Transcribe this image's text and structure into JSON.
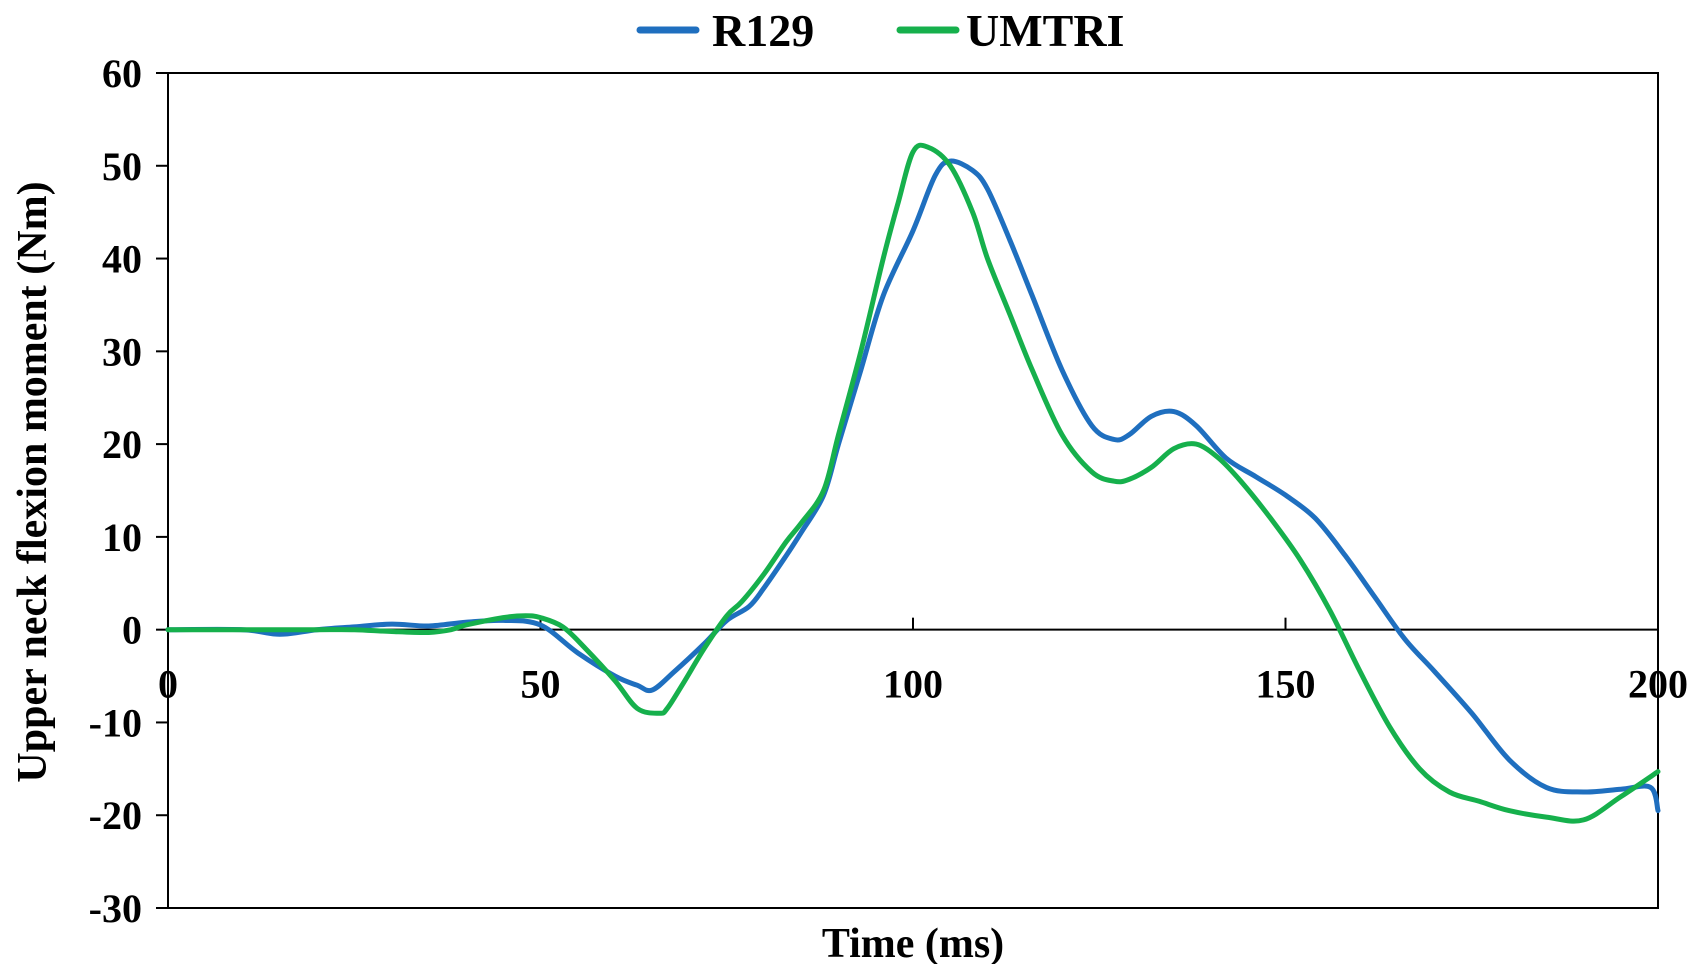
{
  "chart_data": {
    "type": "line",
    "xlabel": "Time (ms)",
    "ylabel": "Upper neck flexion moment (Nm)",
    "xlim": [
      0,
      200
    ],
    "ylim": [
      -30,
      60
    ],
    "x_ticks": [
      0,
      50,
      100,
      150,
      200
    ],
    "y_ticks": [
      60,
      50,
      40,
      30,
      20,
      10,
      0,
      -10,
      -20,
      -30
    ],
    "grid": false,
    "legend_position": "top-center",
    "series": [
      {
        "name": "R129",
        "color": "#1f6fbf",
        "x": [
          0,
          10,
          15,
          20,
          25,
          30,
          35,
          40,
          45,
          50,
          55,
          60,
          63,
          65,
          68,
          72,
          75,
          78,
          80,
          83,
          85,
          88,
          90,
          93,
          96,
          100,
          103,
          105,
          108,
          110,
          113,
          116,
          120,
          124,
          127,
          129,
          132,
          135,
          138,
          142,
          146,
          150,
          154,
          158,
          162,
          166,
          170,
          175,
          180,
          185,
          190,
          195,
          199,
          200
        ],
        "y": [
          0,
          0,
          -0.5,
          0,
          0.3,
          0.6,
          0.4,
          0.8,
          1.0,
          0.5,
          -2.5,
          -5,
          -6,
          -6.5,
          -4.5,
          -1.5,
          1.0,
          2.5,
          4.5,
          8.0,
          10.5,
          14.5,
          20,
          28,
          36,
          43,
          49,
          50.5,
          49.5,
          47.5,
          42,
          36,
          28,
          22,
          20.5,
          21,
          23,
          23.5,
          22,
          18.5,
          16.5,
          14.5,
          12,
          8,
          3.5,
          -1,
          -4.5,
          -9,
          -14,
          -17,
          -17.5,
          -17.2,
          -17,
          -19.5
        ]
      },
      {
        "name": "UMTRI",
        "color": "#16b04c",
        "x": [
          0,
          10,
          15,
          20,
          25,
          30,
          35,
          38,
          40,
          45,
          48,
          50,
          53,
          56,
          60,
          63,
          66,
          67,
          69,
          72,
          75,
          77,
          80,
          83,
          85,
          88,
          90,
          93,
          96,
          98,
          100,
          102,
          105,
          108,
          110,
          113,
          116,
          120,
          124,
          127,
          129,
          132,
          135,
          138,
          141,
          144,
          148,
          152,
          156,
          160,
          164,
          168,
          172,
          176,
          180,
          185,
          190,
          195,
          200
        ],
        "y": [
          0,
          0,
          0,
          0,
          0,
          -0.2,
          -0.3,
          0,
          0.5,
          1.3,
          1.5,
          1.3,
          0.3,
          -2,
          -5.5,
          -8.5,
          -9,
          -8.5,
          -6,
          -2,
          1.5,
          3,
          6,
          9.5,
          11.5,
          15,
          21,
          30,
          40,
          46,
          51.5,
          52,
          50,
          45,
          40,
          34,
          28,
          21,
          17,
          16,
          16.2,
          17.5,
          19.5,
          20,
          18.5,
          16,
          12,
          7.5,
          2,
          -4.5,
          -10.5,
          -15,
          -17.5,
          -18.5,
          -19.5,
          -20.2,
          -20.5,
          -18,
          -15.3
        ]
      }
    ]
  }
}
